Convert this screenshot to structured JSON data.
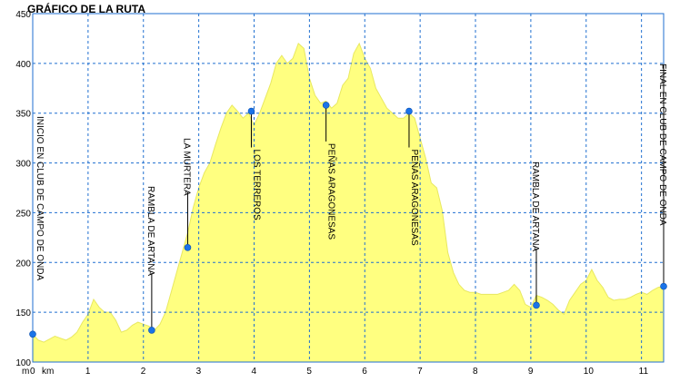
{
  "chart_data": {
    "type": "area",
    "title": "GRÁFICO DE LA RUTA",
    "xlabel": "",
    "ylabel": "",
    "x_unit": "km",
    "y_axis_unit": "m",
    "xlim": [
      0,
      11.4
    ],
    "ylim": [
      100,
      450
    ],
    "x_ticks": [
      "0",
      "1",
      "2",
      "3",
      "4",
      "5",
      "6",
      "7",
      "8",
      "9",
      "10",
      "11"
    ],
    "y_ticks": [
      "100",
      "150",
      "200",
      "250",
      "300",
      "350",
      "400",
      "450"
    ],
    "grid": true,
    "colors": {
      "fill": "#ffff80",
      "stroke": "#e8e860",
      "marker": "#1a73e8",
      "grid": "#1f6fd0",
      "frame": "#1f6fd0"
    },
    "series": [
      {
        "x": [
          0,
          0.1,
          0.2,
          0.3,
          0.4,
          0.5,
          0.6,
          0.7,
          0.8,
          0.9,
          1.0,
          1.1,
          1.2,
          1.3,
          1.4,
          1.5,
          1.6,
          1.7,
          1.8,
          1.9,
          2.0,
          2.1,
          2.2,
          2.3,
          2.4,
          2.5,
          2.6,
          2.7,
          2.8,
          2.9,
          3.0,
          3.1,
          3.2,
          3.3,
          3.4,
          3.5,
          3.6,
          3.7,
          3.8,
          3.9,
          4.0,
          4.1,
          4.2,
          4.3,
          4.4,
          4.5,
          4.6,
          4.7,
          4.8,
          4.9,
          5.0,
          5.1,
          5.2,
          5.3,
          5.4,
          5.5,
          5.6,
          5.7,
          5.8,
          5.9,
          6.0,
          6.1,
          6.2,
          6.3,
          6.4,
          6.5,
          6.6,
          6.7,
          6.8,
          6.9,
          7.0,
          7.1,
          7.2,
          7.3,
          7.4,
          7.5,
          7.6,
          7.7,
          7.8,
          7.9,
          8.0,
          8.1,
          8.2,
          8.3,
          8.4,
          8.5,
          8.6,
          8.7,
          8.8,
          8.9,
          9.0,
          9.1,
          9.2,
          9.3,
          9.4,
          9.5,
          9.6,
          9.7,
          9.8,
          9.9,
          10.0,
          10.1,
          10.2,
          10.3,
          10.4,
          10.5,
          10.6,
          10.7,
          10.8,
          10.9,
          11.0,
          11.1,
          11.2,
          11.3,
          11.4
        ],
        "values": [
          128,
          122,
          120,
          123,
          126,
          124,
          122,
          125,
          130,
          140,
          148,
          163,
          155,
          150,
          150,
          142,
          130,
          132,
          137,
          140,
          138,
          136,
          132,
          138,
          150,
          170,
          190,
          210,
          230,
          255,
          275,
          290,
          300,
          318,
          335,
          350,
          358,
          352,
          345,
          350,
          338,
          350,
          365,
          380,
          400,
          408,
          400,
          405,
          420,
          415,
          385,
          368,
          360,
          362,
          355,
          360,
          378,
          385,
          410,
          420,
          405,
          395,
          375,
          365,
          355,
          350,
          345,
          345,
          350,
          345,
          325,
          305,
          280,
          275,
          252,
          210,
          190,
          178,
          172,
          170,
          170,
          168,
          168,
          168,
          168,
          170,
          172,
          178,
          172,
          158,
          155,
          167,
          165,
          162,
          158,
          152,
          148,
          162,
          170,
          178,
          182,
          193,
          182,
          175,
          165,
          162,
          163,
          163,
          165,
          168,
          170,
          168,
          172,
          175,
          176
        ]
      }
    ],
    "waypoints": [
      {
        "x": 0.0,
        "y": 128,
        "label": "INICIO EN CLUB DE CAMPO DE ONDA"
      },
      {
        "x": 2.15,
        "y": 132,
        "label": "RAMBLA DE ARTANA"
      },
      {
        "x": 2.8,
        "y": 215,
        "label": "LA MURTERA"
      },
      {
        "x": 3.95,
        "y": 352,
        "label": "LOS TERREROS"
      },
      {
        "x": 5.3,
        "y": 358,
        "label": "PEÑAS ARAGONESAS"
      },
      {
        "x": 6.8,
        "y": 352,
        "label": "PEÑAS ARAGONESAS"
      },
      {
        "x": 9.1,
        "y": 157,
        "label": "RAMBLA DE ARTANA"
      },
      {
        "x": 11.4,
        "y": 176,
        "label": "FINAL EN CLUB DE CAMPO DE ONDA"
      }
    ]
  }
}
